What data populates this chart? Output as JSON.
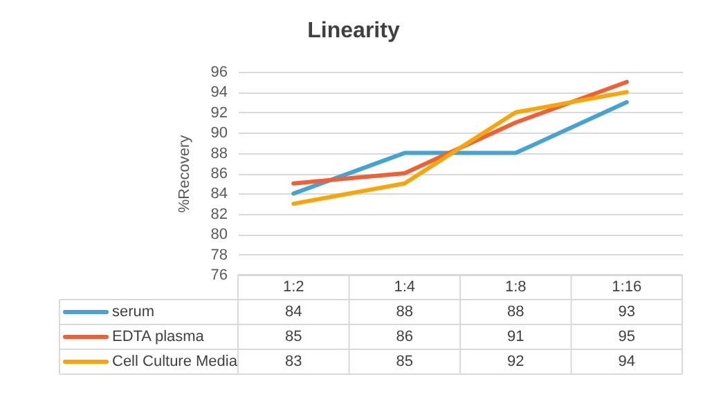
{
  "chart_data": {
    "type": "line",
    "title": "Linearity",
    "ylabel": "%Recovery",
    "categories": [
      "1:2",
      "1:4",
      "1:8",
      "1:16"
    ],
    "series": [
      {
        "name": "serum",
        "color": "#46a3d0",
        "values": [
          84,
          88,
          88,
          93
        ]
      },
      {
        "name": "EDTA plasma",
        "color": "#ef6035",
        "values": [
          85,
          86,
          91,
          95
        ]
      },
      {
        "name": "Cell Culture Media",
        "color": "#f7a60a",
        "values": [
          83,
          85,
          92,
          94
        ]
      }
    ],
    "ylim": [
      76,
      96
    ],
    "yticks": [
      76,
      78,
      80,
      82,
      84,
      86,
      88,
      90,
      92,
      94,
      96
    ],
    "grid": "y",
    "legend": "bottom",
    "data_labels": true
  }
}
